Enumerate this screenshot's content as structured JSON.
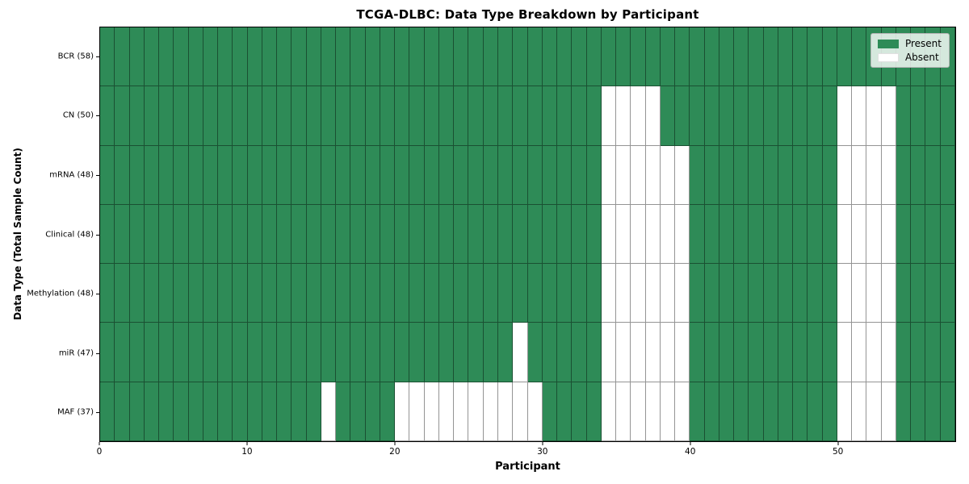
{
  "chart_data": {
    "type": "heatmap",
    "title": "TCGA-DLBC: Data Type Breakdown by Participant",
    "xlabel": "Participant",
    "ylabel": "Data Type (Total Sample Count)",
    "n_participants": 58,
    "x_range": [
      0,
      58
    ],
    "x_ticks": [
      0,
      10,
      20,
      30,
      40,
      50
    ],
    "grid": "cell borders on",
    "legend_position": "upper right",
    "legend": [
      {
        "label": "Present",
        "color": "#2e8b57"
      },
      {
        "label": "Absent",
        "color": "#ffffff"
      }
    ],
    "rows": [
      {
        "label": "BCR (58)",
        "data_type": "BCR",
        "total": 58,
        "absent": []
      },
      {
        "label": "CN (50)",
        "data_type": "CN",
        "total": 50,
        "absent": [
          34,
          35,
          36,
          37,
          50,
          51,
          52,
          53
        ]
      },
      {
        "label": "mRNA (48)",
        "data_type": "mRNA",
        "total": 48,
        "absent": [
          34,
          35,
          36,
          37,
          38,
          39,
          50,
          51,
          52,
          53
        ]
      },
      {
        "label": "Clinical (48)",
        "data_type": "Clinical",
        "total": 48,
        "absent": [
          34,
          35,
          36,
          37,
          38,
          39,
          50,
          51,
          52,
          53
        ]
      },
      {
        "label": "Methylation (48)",
        "data_type": "Methylation",
        "total": 48,
        "absent": [
          34,
          35,
          36,
          37,
          38,
          39,
          50,
          51,
          52,
          53
        ]
      },
      {
        "label": "miR (47)",
        "data_type": "miR",
        "total": 47,
        "absent": [
          28,
          34,
          35,
          36,
          37,
          38,
          39,
          50,
          51,
          52,
          53
        ]
      },
      {
        "label": "MAF (37)",
        "data_type": "MAF",
        "total": 37,
        "absent": [
          15,
          20,
          21,
          22,
          23,
          24,
          25,
          26,
          27,
          28,
          29,
          34,
          35,
          36,
          37,
          38,
          39,
          50,
          51,
          52,
          53
        ]
      }
    ]
  }
}
